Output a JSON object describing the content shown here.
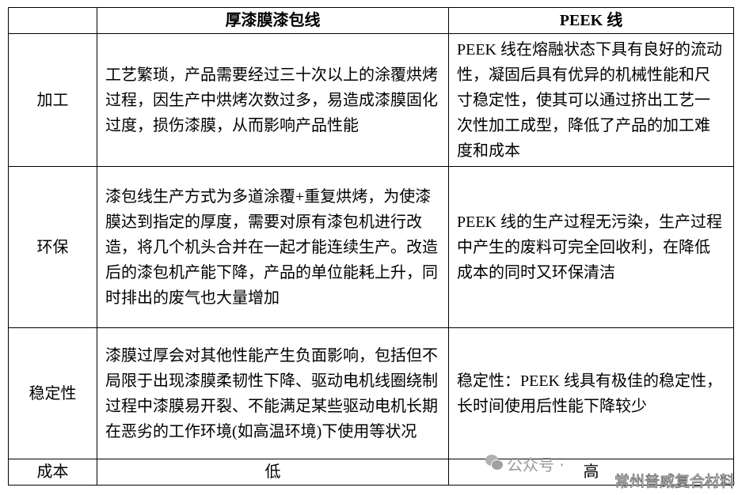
{
  "table": {
    "headers": [
      "",
      "厚漆膜漆包线",
      "PEEK 线"
    ],
    "rows": [
      {
        "label": "加工",
        "a": "工艺繁琐，产品需要经过三十次以上的涂覆烘烤过程，因生产中烘烤次数过多，易造成漆膜固化过度，损伤漆膜，从而影响产品性能",
        "b": "PEEK 线在熔融状态下具有良好的流动性，凝固后具有优异的机械性能和尺寸稳定性，使其可以通过挤出工艺一次性加工成型，降低了产品的加工难度和成本"
      },
      {
        "label": "环保",
        "a": "漆包线生产方式为多道涂覆+重复烘烤，为使漆膜达到指定的厚度，需要对原有漆包机进行改造，将几个机头合并在一起才能连续生产。改造后的漆包机产能下降，产品的单位能耗上升，同时排出的废气也大量增加",
        "b": "PEEK 线的生产过程无污染，生产过程中产生的废料可完全回收利，在降低成本的同时又环保清洁"
      },
      {
        "label": "稳定性",
        "a": "漆膜过厚会对其他性能产生负面影响，包括但不局限于出现漆膜柔韧性下降、驱动电机线圈绕制过程中漆膜易开裂、不能满足某些驱动电机长期在恶劣的工作环境(如高温环境)下使用等状况",
        "b": "稳定性：PEEK 线具有极佳的稳定性，长时间使用后性能下降较少"
      },
      {
        "label": "成本",
        "a": "低",
        "b": "高"
      }
    ]
  },
  "watermark": {
    "prefix": "公众号 ·",
    "name": "常州普威复合材料",
    "icon": "wechat-icon"
  }
}
